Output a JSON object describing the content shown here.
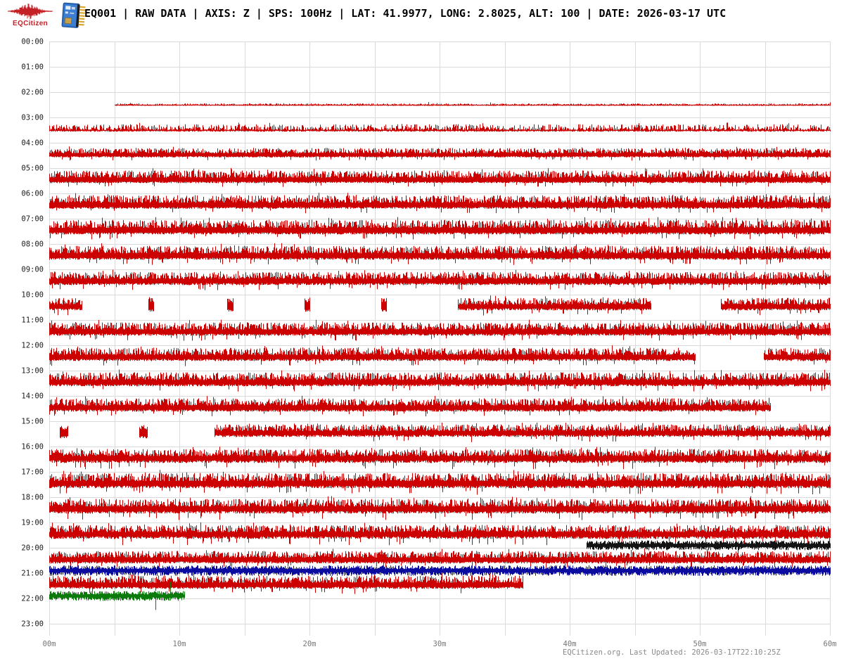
{
  "header": {
    "logo_text": "EQCitizen",
    "title": "EQ001 | RAW DATA | AXIS: Z | SPS: 100Hz | LAT: 41.9977, LONG: 2.8025, ALT: 100 | DATE: 2026-03-17 UTC"
  },
  "footer": {
    "text": "EQCitizen.org. Last Updated: 2026-03-17T22:10:25Z"
  },
  "chart_data": {
    "type": "helicorder",
    "station": "EQ001",
    "data_mode": "RAW DATA",
    "axis": "Z",
    "sps": "100Hz",
    "lat": "41.9977",
    "long": "2.8025",
    "alt": "100",
    "date_utc": "2026-03-17",
    "minutes_per_row": 60,
    "x_ticks": [
      "00m",
      "10m",
      "20m",
      "30m",
      "40m",
      "50m",
      "60m"
    ],
    "grid": {
      "x_interval_min": 5,
      "y_interval": "1 hour"
    },
    "colors": {
      "trace_red": "#cc0000",
      "trace_black": "#131313",
      "trace_blue": "#0b0ba0",
      "trace_green": "#0a7a0a",
      "grid": "#dbdbdb",
      "hour_label": "#1a1a1a",
      "tick_label": "#767676",
      "logo_red": "#c42127"
    },
    "rows": [
      {
        "label": "00:00",
        "segments": []
      },
      {
        "label": "01:00",
        "segments": []
      },
      {
        "label": "02:00",
        "segments": [
          {
            "start_min": 5.0,
            "end_min": 60,
            "up": 2,
            "down": 0.6,
            "kind": "flat"
          }
        ]
      },
      {
        "label": "03:00",
        "segments": [
          {
            "start_min": 0,
            "end_min": 60,
            "up": 8,
            "down": 1.5,
            "kind": "spiky"
          }
        ]
      },
      {
        "label": "04:00",
        "segments": [
          {
            "start_min": 0,
            "end_min": 60,
            "up": 11,
            "down": 2.5,
            "kind": "band"
          }
        ]
      },
      {
        "label": "05:00",
        "segments": [
          {
            "start_min": 0,
            "end_min": 60,
            "up": 15,
            "down": 3,
            "kind": "band"
          }
        ]
      },
      {
        "label": "06:00",
        "segments": [
          {
            "start_min": 0,
            "end_min": 60,
            "up": 16,
            "down": 3.5,
            "kind": "band"
          }
        ]
      },
      {
        "label": "07:00",
        "segments": [
          {
            "start_min": 0,
            "end_min": 60,
            "up": 17,
            "down": 4,
            "kind": "band"
          }
        ]
      },
      {
        "label": "08:00",
        "segments": [
          {
            "start_min": 0,
            "end_min": 60,
            "up": 16,
            "down": 4,
            "kind": "band"
          }
        ]
      },
      {
        "label": "09:00",
        "segments": [
          {
            "start_min": 0,
            "end_min": 60,
            "up": 15,
            "down": 4,
            "kind": "band"
          }
        ]
      },
      {
        "label": "10:00",
        "segments": [
          {
            "start_min": 0,
            "end_min": 2.5,
            "up": 14,
            "down": 4,
            "kind": "band"
          },
          {
            "start_min": 7.6,
            "end_min": 8.0,
            "up": 15,
            "down": 6,
            "kind": "burst"
          },
          {
            "start_min": 13.7,
            "end_min": 14.1,
            "up": 15,
            "down": 6,
            "kind": "burst"
          },
          {
            "start_min": 19.6,
            "end_min": 20.0,
            "up": 15,
            "down": 6,
            "kind": "burst"
          },
          {
            "start_min": 25.5,
            "end_min": 25.9,
            "up": 15,
            "down": 6,
            "kind": "burst"
          },
          {
            "start_min": 31.4,
            "end_min": 46.2,
            "up": 14,
            "down": 4,
            "kind": "band"
          },
          {
            "start_min": 51.6,
            "end_min": 60,
            "up": 14,
            "down": 4,
            "kind": "band"
          }
        ]
      },
      {
        "label": "11:00",
        "segments": [
          {
            "start_min": 0,
            "end_min": 60,
            "up": 15,
            "down": 4,
            "kind": "band"
          }
        ]
      },
      {
        "label": "12:00",
        "segments": [
          {
            "start_min": 0,
            "end_min": 49.6,
            "up": 15,
            "down": 4,
            "kind": "band"
          },
          {
            "start_min": 54.9,
            "end_min": 60,
            "up": 15,
            "down": 4,
            "kind": "band"
          }
        ]
      },
      {
        "label": "13:00",
        "segments": [
          {
            "start_min": 0,
            "end_min": 60,
            "up": 16,
            "down": 4,
            "kind": "band"
          }
        ]
      },
      {
        "label": "14:00",
        "segments": [
          {
            "start_min": 0,
            "end_min": 55.4,
            "up": 15,
            "down": 4,
            "kind": "band"
          }
        ]
      },
      {
        "label": "15:00",
        "segments": [
          {
            "start_min": 0.8,
            "end_min": 1.4,
            "up": 13,
            "down": 6,
            "kind": "burst"
          },
          {
            "start_min": 6.9,
            "end_min": 7.5,
            "up": 13,
            "down": 6,
            "kind": "burst"
          },
          {
            "start_min": 12.7,
            "end_min": 60,
            "up": 14,
            "down": 4,
            "kind": "band"
          }
        ]
      },
      {
        "label": "16:00",
        "segments": [
          {
            "start_min": 0,
            "end_min": 60,
            "up": 15,
            "down": 5,
            "kind": "band"
          }
        ]
      },
      {
        "label": "17:00",
        "segments": [
          {
            "start_min": 0,
            "end_min": 60,
            "up": 17,
            "down": 5,
            "kind": "band"
          }
        ]
      },
      {
        "label": "18:00",
        "segments": [
          {
            "start_min": 0,
            "end_min": 60,
            "up": 16,
            "down": 5,
            "kind": "band"
          }
        ]
      },
      {
        "label": "19:00",
        "segments": [
          {
            "start_min": 0,
            "end_min": 60,
            "up": 15,
            "down": 5,
            "kind": "band"
          }
        ]
      },
      {
        "label": "20:00",
        "segments": [
          {
            "start_min": 0,
            "end_min": 60,
            "up": 14,
            "down": 4,
            "kind": "band"
          }
        ]
      },
      {
        "label": "21:00",
        "segments": [
          {
            "start_min": 0,
            "end_min": 36.4,
            "up": 15,
            "down": 4,
            "kind": "band"
          }
        ]
      },
      {
        "label": "22:00",
        "segments": []
      },
      {
        "label": "23:00",
        "segments": []
      }
    ],
    "overlay_traces": [
      {
        "hour_label": "20:00",
        "hour_index": 20,
        "color": "trace_black",
        "start_min": 41.3,
        "end_min": 60,
        "amp": 7,
        "spikes": []
      },
      {
        "hour_label": "21:00",
        "hour_index": 21,
        "color": "trace_blue",
        "start_min": 0,
        "end_min": 60,
        "amp": 7.5,
        "spikes": []
      },
      {
        "hour_label": "22:00",
        "hour_index": 22,
        "color": "trace_green",
        "start_min": 0,
        "end_min": 10.4,
        "amp": 7,
        "spikes": [
          {
            "min": 8.15,
            "up": 4,
            "down": 20
          },
          {
            "min": 9.3,
            "up": 20,
            "down": 4
          }
        ]
      }
    ]
  }
}
